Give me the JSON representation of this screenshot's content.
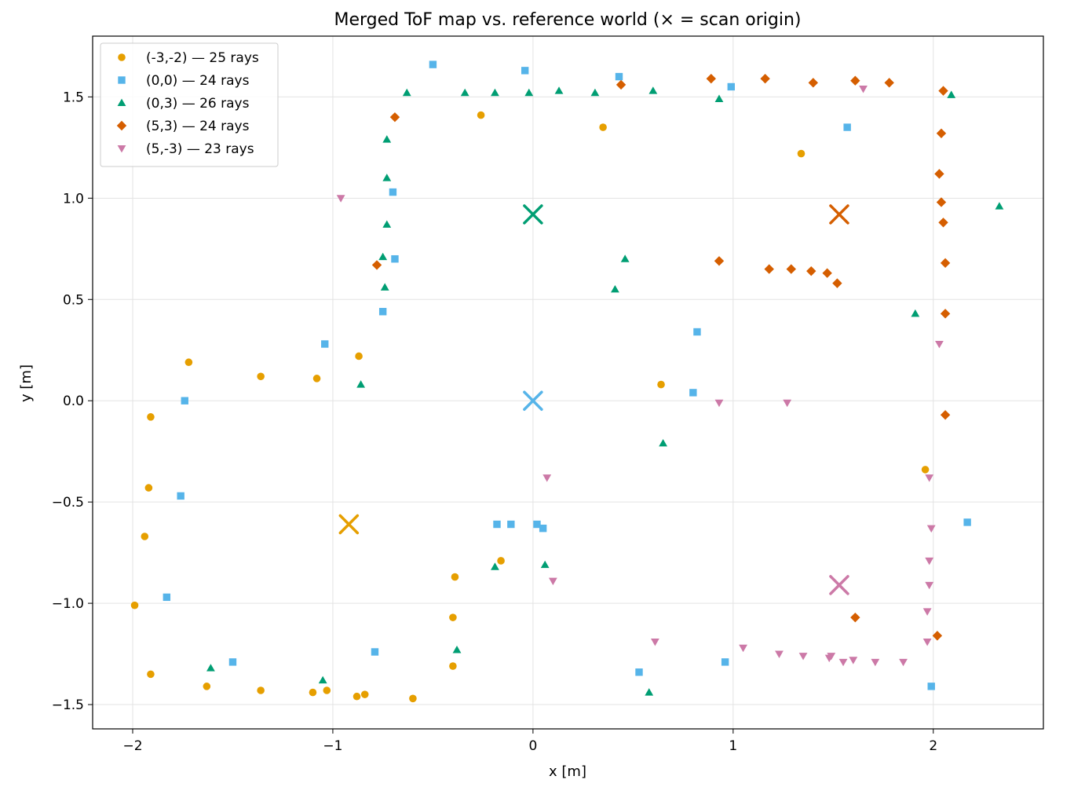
{
  "chart_data": {
    "type": "scatter",
    "title": "Merged ToF map vs. reference world  (× = scan origin)",
    "xlabel": "x [m]",
    "ylabel": "y [m]",
    "xlim": [
      -2.2,
      2.55
    ],
    "ylim": [
      -1.62,
      1.8
    ],
    "xticks": [
      -2,
      -1,
      0,
      1,
      2
    ],
    "yticks": [
      -1.5,
      -1.0,
      -0.5,
      0.0,
      0.5,
      1.0,
      1.5
    ],
    "xtick_labels": [
      "−2",
      "−1",
      "0",
      "1",
      "2"
    ],
    "ytick_labels": [
      "−1.5",
      "−1.0",
      "−0.5",
      "0.0",
      "0.5",
      "1.0",
      "1.5"
    ],
    "grid": true,
    "legend_position": "top-left",
    "series": [
      {
        "name": "(-3,-2) — 25 rays",
        "marker": "circle",
        "color": "#E69F00",
        "origin": [
          -0.92,
          -0.61
        ],
        "points": [
          [
            -1.72,
            0.19
          ],
          [
            -1.36,
            0.12
          ],
          [
            -1.08,
            0.11
          ],
          [
            -0.87,
            0.22
          ],
          [
            -1.91,
            -0.08
          ],
          [
            -1.92,
            -0.43
          ],
          [
            -1.94,
            -0.67
          ],
          [
            -1.99,
            -1.01
          ],
          [
            -1.91,
            -1.35
          ],
          [
            -1.63,
            -1.41
          ],
          [
            -1.36,
            -1.43
          ],
          [
            -1.1,
            -1.44
          ],
          [
            -1.03,
            -1.43
          ],
          [
            -0.88,
            -1.46
          ],
          [
            -0.84,
            -1.45
          ],
          [
            -0.6,
            -1.47
          ],
          [
            -0.4,
            -1.31
          ],
          [
            -0.4,
            -1.07
          ],
          [
            -0.39,
            -0.87
          ],
          [
            -0.16,
            -0.79
          ],
          [
            -0.26,
            1.41
          ],
          [
            0.35,
            1.35
          ],
          [
            0.64,
            0.08
          ],
          [
            1.34,
            1.22
          ],
          [
            1.96,
            -0.34
          ]
        ]
      },
      {
        "name": "(0,0) — 24 rays",
        "marker": "square",
        "color": "#56B4E9",
        "origin": [
          0.0,
          0.0
        ],
        "points": [
          [
            -0.5,
            1.66
          ],
          [
            -0.04,
            1.63
          ],
          [
            0.43,
            1.6
          ],
          [
            0.99,
            1.55
          ],
          [
            1.57,
            1.35
          ],
          [
            -0.7,
            1.03
          ],
          [
            -0.69,
            0.7
          ],
          [
            -0.75,
            0.44
          ],
          [
            -1.04,
            0.28
          ],
          [
            -1.74,
            0.0
          ],
          [
            -1.76,
            -0.47
          ],
          [
            -1.83,
            -0.97
          ],
          [
            -1.5,
            -1.29
          ],
          [
            -0.79,
            -1.24
          ],
          [
            -0.18,
            -0.61
          ],
          [
            -0.11,
            -0.61
          ],
          [
            0.02,
            -0.61
          ],
          [
            0.05,
            -0.63
          ],
          [
            0.53,
            -1.34
          ],
          [
            0.96,
            -1.29
          ],
          [
            0.82,
            0.34
          ],
          [
            0.8,
            0.04
          ],
          [
            1.99,
            -1.41
          ],
          [
            2.17,
            -0.6
          ]
        ]
      },
      {
        "name": "(0,3) — 26 rays",
        "marker": "triangle-up",
        "color": "#009E73",
        "origin": [
          0.0,
          0.92
        ],
        "points": [
          [
            -0.63,
            1.52
          ],
          [
            -0.34,
            1.52
          ],
          [
            -0.19,
            1.52
          ],
          [
            -0.02,
            1.52
          ],
          [
            0.13,
            1.53
          ],
          [
            0.31,
            1.52
          ],
          [
            0.6,
            1.53
          ],
          [
            0.93,
            1.49
          ],
          [
            2.09,
            1.51
          ],
          [
            -0.73,
            1.29
          ],
          [
            -0.73,
            1.1
          ],
          [
            -0.73,
            0.87
          ],
          [
            -0.75,
            0.71
          ],
          [
            -0.74,
            0.56
          ],
          [
            0.46,
            0.7
          ],
          [
            0.41,
            0.55
          ],
          [
            -0.86,
            0.08
          ],
          [
            0.65,
            -0.21
          ],
          [
            1.91,
            0.43
          ],
          [
            2.33,
            0.96
          ],
          [
            0.06,
            -0.81
          ],
          [
            -0.19,
            -0.82
          ],
          [
            -0.38,
            -1.23
          ],
          [
            -1.05,
            -1.38
          ],
          [
            -1.61,
            -1.32
          ],
          [
            0.58,
            -1.44
          ]
        ]
      },
      {
        "name": "(5,3) — 24 rays",
        "marker": "diamond",
        "color": "#D55E00",
        "origin": [
          1.53,
          0.92
        ],
        "points": [
          [
            -0.69,
            1.4
          ],
          [
            -0.78,
            0.67
          ],
          [
            0.44,
            1.56
          ],
          [
            0.89,
            1.59
          ],
          [
            1.16,
            1.59
          ],
          [
            1.4,
            1.57
          ],
          [
            1.61,
            1.58
          ],
          [
            1.78,
            1.57
          ],
          [
            2.05,
            1.53
          ],
          [
            2.04,
            1.32
          ],
          [
            2.03,
            1.12
          ],
          [
            2.04,
            0.98
          ],
          [
            2.05,
            0.88
          ],
          [
            2.06,
            0.68
          ],
          [
            2.06,
            0.43
          ],
          [
            2.06,
            -0.07
          ],
          [
            0.93,
            0.69
          ],
          [
            1.18,
            0.65
          ],
          [
            1.29,
            0.65
          ],
          [
            1.39,
            0.64
          ],
          [
            1.47,
            0.63
          ],
          [
            1.52,
            0.58
          ],
          [
            1.61,
            -1.07
          ],
          [
            2.02,
            -1.16
          ]
        ]
      },
      {
        "name": "(5,-3) — 23 rays",
        "marker": "triangle-down",
        "color": "#CC79A7",
        "origin": [
          1.53,
          -0.91
        ],
        "points": [
          [
            -0.96,
            1.0
          ],
          [
            1.65,
            1.54
          ],
          [
            0.93,
            -0.01
          ],
          [
            1.27,
            -0.01
          ],
          [
            2.03,
            0.28
          ],
          [
            0.07,
            -0.38
          ],
          [
            0.1,
            -0.89
          ],
          [
            1.98,
            -0.38
          ],
          [
            1.99,
            -0.63
          ],
          [
            1.98,
            -0.79
          ],
          [
            1.98,
            -0.91
          ],
          [
            1.97,
            -1.04
          ],
          [
            1.97,
            -1.19
          ],
          [
            0.61,
            -1.19
          ],
          [
            1.05,
            -1.22
          ],
          [
            1.23,
            -1.25
          ],
          [
            1.35,
            -1.26
          ],
          [
            1.48,
            -1.27
          ],
          [
            1.49,
            -1.26
          ],
          [
            1.55,
            -1.29
          ],
          [
            1.6,
            -1.28
          ],
          [
            1.71,
            -1.29
          ],
          [
            1.85,
            -1.29
          ]
        ]
      }
    ]
  }
}
